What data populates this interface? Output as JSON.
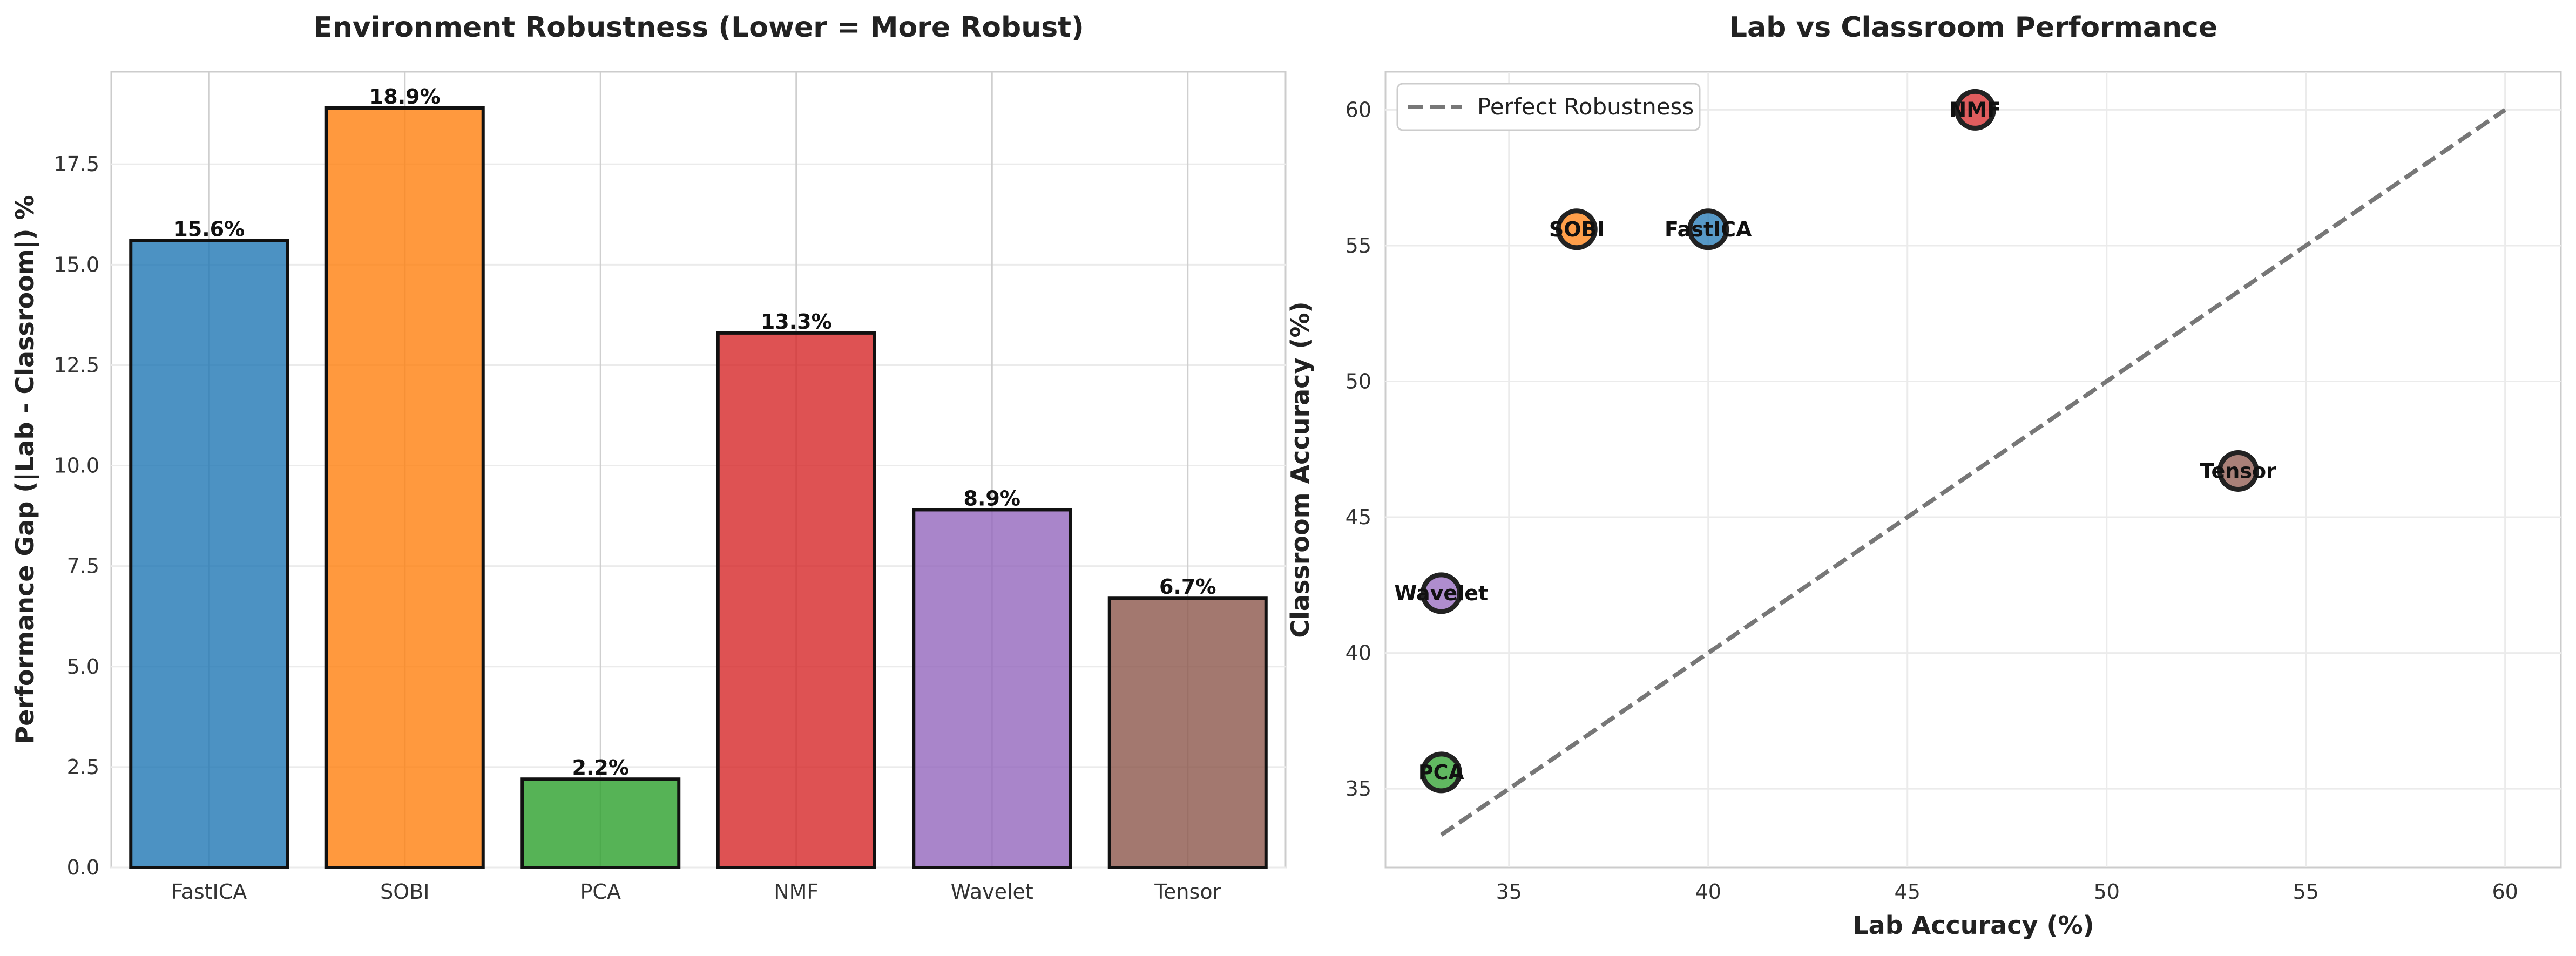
{
  "chart_data": [
    {
      "type": "bar",
      "title": "Environment Robustness (Lower = More Robust)",
      "xlabel": "",
      "ylabel": "Performance Gap (|Lab - Classroom|) %",
      "ylim": [
        0,
        19.8
      ],
      "yticks": [
        "0.0",
        "2.5",
        "5.0",
        "7.5",
        "10.0",
        "12.5",
        "15.0",
        "17.5"
      ],
      "categories": [
        "FastICA",
        "SOBI",
        "PCA",
        "NMF",
        "Wavelet",
        "Tensor"
      ],
      "values": [
        15.6,
        18.9,
        2.2,
        13.3,
        8.9,
        6.7
      ],
      "labels": [
        "15.6%",
        "18.9%",
        "2.2%",
        "13.3%",
        "8.9%",
        "6.7%"
      ],
      "colors": [
        "#1f77b4",
        "#ff7f0e",
        "#2ca02c",
        "#d62728",
        "#9467bd",
        "#8c564b"
      ],
      "grid": true
    },
    {
      "type": "scatter",
      "title": "Lab vs Classroom Performance",
      "xlabel": "Lab Accuracy (%)",
      "ylabel": "Classroom Accuracy (%)",
      "xlim": [
        31.9,
        61.4
      ],
      "ylim": [
        32.1,
        61.4
      ],
      "xticks": [
        "35",
        "40",
        "45",
        "50",
        "55",
        "60"
      ],
      "yticks": [
        "35",
        "40",
        "45",
        "50",
        "55",
        "60"
      ],
      "points": [
        {
          "name": "FastICA",
          "x": 40.0,
          "y": 55.6,
          "color": "#1f77b4"
        },
        {
          "name": "SOBI",
          "x": 36.7,
          "y": 55.6,
          "color": "#ff7f0e"
        },
        {
          "name": "PCA",
          "x": 33.3,
          "y": 35.6,
          "color": "#2ca02c"
        },
        {
          "name": "NMF",
          "x": 46.7,
          "y": 60.0,
          "color": "#d62728"
        },
        {
          "name": "Wavelet",
          "x": 33.3,
          "y": 42.2,
          "color": "#9467bd"
        },
        {
          "name": "Tensor",
          "x": 53.3,
          "y": 46.7,
          "color": "#8c564b"
        }
      ],
      "reference_line": {
        "name": "Perfect Robustness",
        "from": [
          33.3,
          33.3
        ],
        "to": [
          60.0,
          60.0
        ],
        "color": "#777777"
      },
      "legend": {
        "location": "top-left",
        "entries": [
          "Perfect Robustness"
        ]
      },
      "grid": true
    }
  ]
}
